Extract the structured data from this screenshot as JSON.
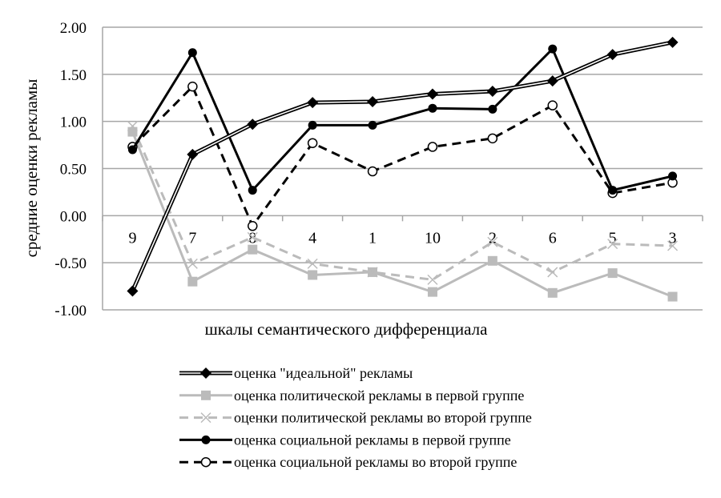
{
  "chart_data": {
    "type": "line",
    "title": "",
    "xlabel": "шкалы семантического дифференциала",
    "ylabel": "средние оценки рекламы",
    "ylim": [
      -1,
      2
    ],
    "yticks": [
      2,
      1.5,
      1,
      0.5,
      0,
      -0.5,
      -1
    ],
    "ytick_labels": [
      "2.00",
      "1.50",
      "1.00",
      "0.50",
      "0.00",
      "-0.50",
      "-1.00"
    ],
    "grid": true,
    "legend_position": "bottom",
    "categories": [
      "9",
      "7",
      "8",
      "4",
      "1",
      "10",
      "2",
      "6",
      "5",
      "3"
    ],
    "series": [
      {
        "name": "оценка \"идеальной\" рекламы",
        "style": "double",
        "marker": "diamond",
        "color": "#000000",
        "values": [
          -0.8,
          0.65,
          0.97,
          1.2,
          1.21,
          1.29,
          1.32,
          1.43,
          1.71,
          1.84
        ]
      },
      {
        "name": "оценка политической рекламы в первой группе",
        "style": "solid",
        "marker": "square",
        "color": "#bbbbbb",
        "values": [
          0.89,
          -0.7,
          -0.36,
          -0.63,
          -0.6,
          -0.81,
          -0.48,
          -0.82,
          -0.61,
          -0.86
        ]
      },
      {
        "name": "оценки политической рекламы во второй группе",
        "style": "dashed",
        "marker": "x",
        "color": "#bbbbbb",
        "values": [
          0.95,
          -0.51,
          -0.23,
          -0.51,
          -0.6,
          -0.68,
          -0.28,
          -0.6,
          -0.3,
          -0.32
        ]
      },
      {
        "name": "оценка социальной рекламы в первой группе",
        "style": "solid",
        "marker": "circle",
        "color": "#000000",
        "values": [
          0.7,
          1.73,
          0.27,
          0.96,
          0.96,
          1.14,
          1.13,
          1.77,
          0.27,
          0.42
        ]
      },
      {
        "name": "оценка социальной рекламы во второй группе",
        "style": "dashed",
        "marker": "open-circle",
        "color": "#000000",
        "values": [
          0.73,
          1.37,
          -0.11,
          0.77,
          0.47,
          0.73,
          0.82,
          1.17,
          0.24,
          0.35
        ]
      }
    ]
  }
}
